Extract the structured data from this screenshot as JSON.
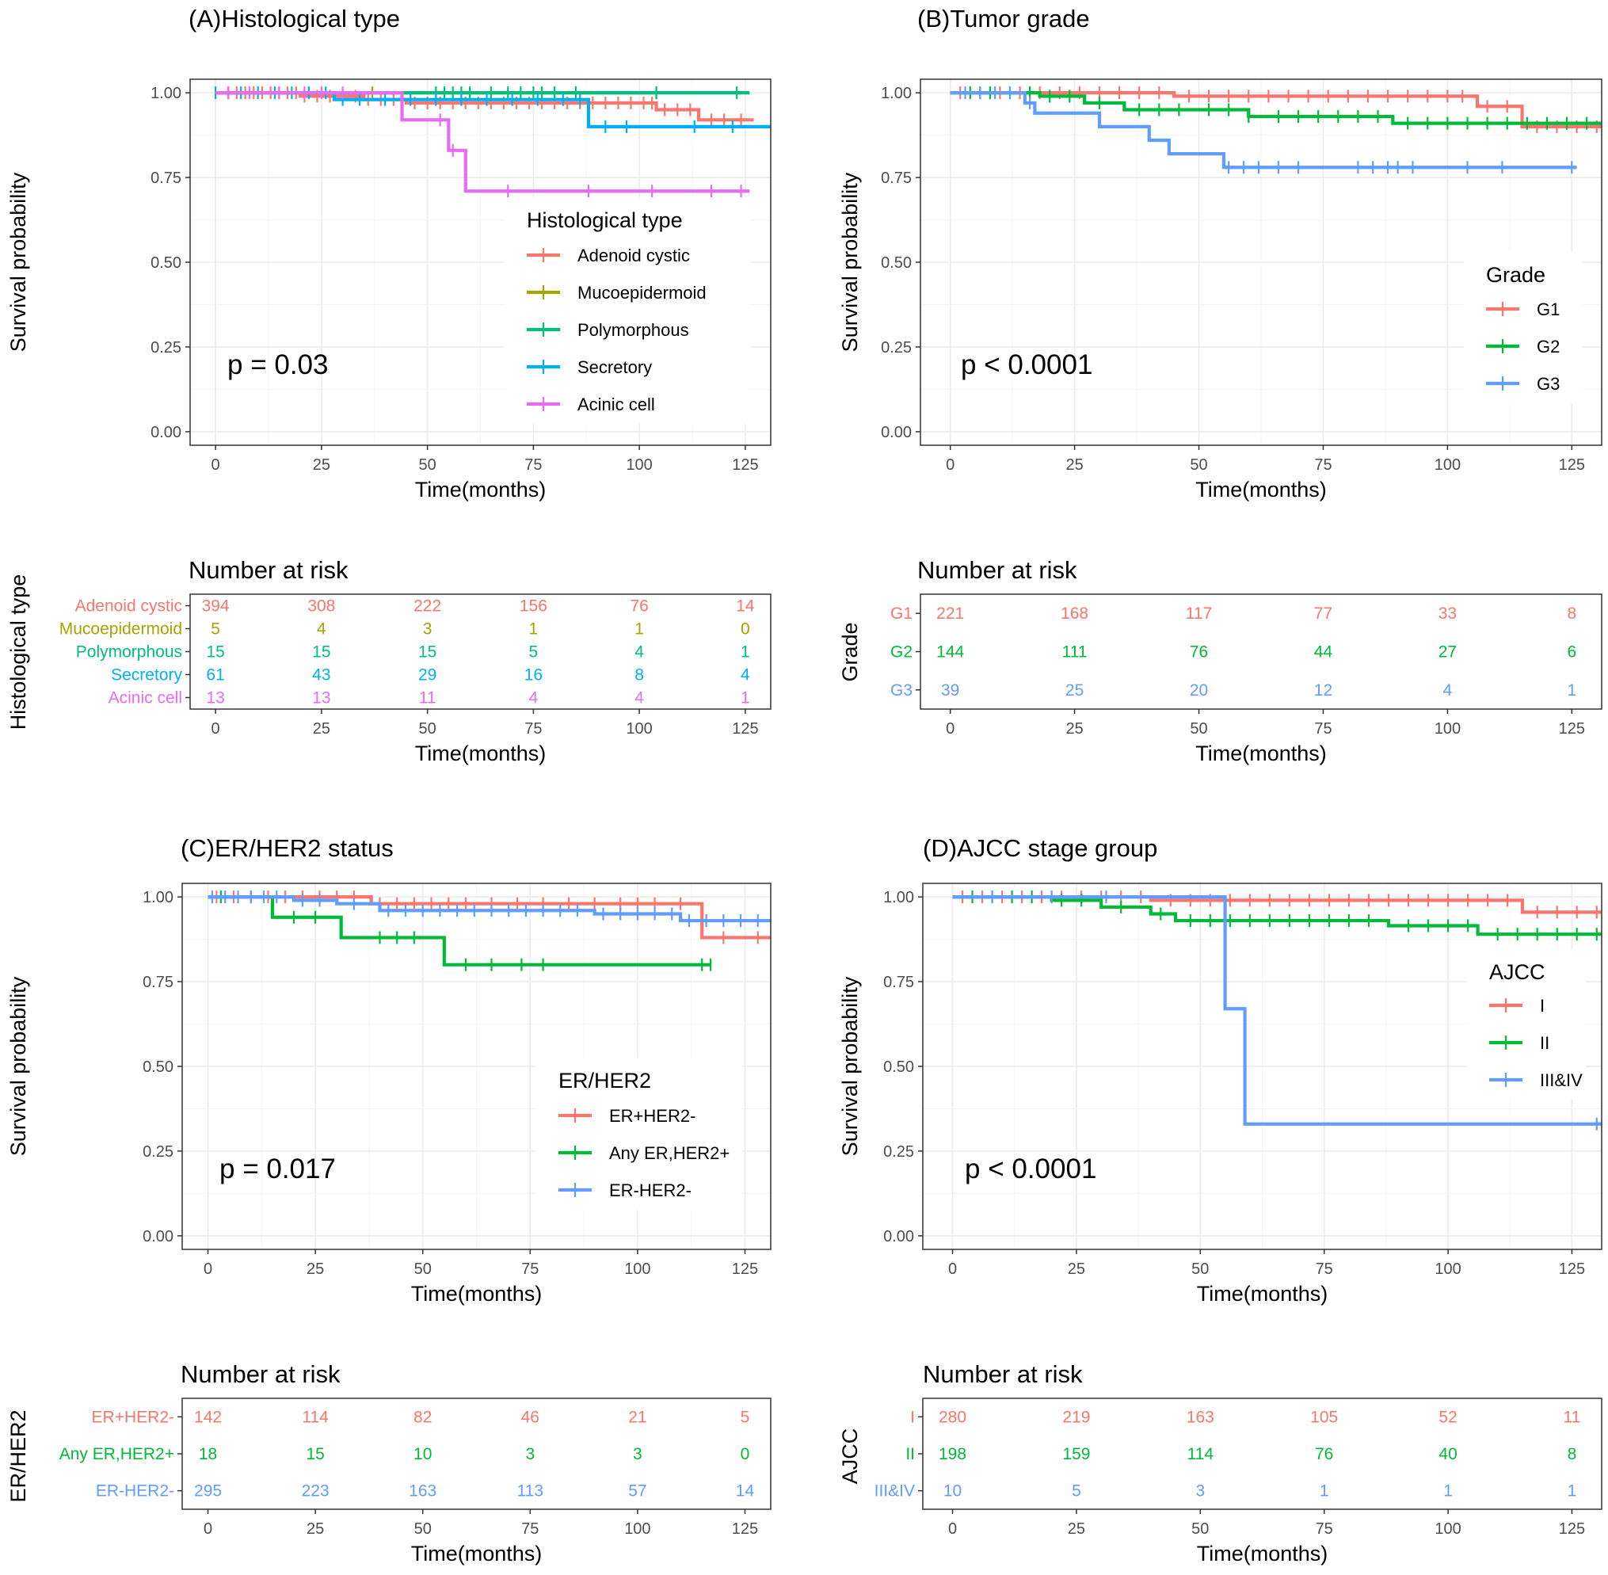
{
  "chart_data": [
    {
      "id": "A",
      "type": "line",
      "title": "(A)Histological type",
      "xlabel": "Time(months)",
      "ylabel": "Survival probability",
      "xlim": [
        -6,
        131
      ],
      "ylim": [
        -0.04,
        1.04
      ],
      "xticks": [
        "0",
        "25",
        "50",
        "75",
        "100",
        "125"
      ],
      "yticks": [
        "0.00",
        "0.25",
        "0.50",
        "0.75",
        "1.00"
      ],
      "grid": true,
      "pvalue": "p = 0.03",
      "legend": {
        "title": "Histological type",
        "position": "center-right"
      },
      "series": [
        {
          "name": "Adenoid cystic",
          "color": "#F8766D",
          "end": 127,
          "steps": [
            [
              0,
              1.0
            ],
            [
              20,
              0.99
            ],
            [
              35,
              0.98
            ],
            [
              45,
              0.97
            ],
            [
              104,
              0.95
            ],
            [
              114,
              0.92
            ]
          ],
          "censors": [
            3,
            5,
            7,
            9,
            11,
            13,
            15,
            17,
            19,
            21,
            24,
            27,
            30,
            33,
            36,
            39,
            42,
            47,
            50,
            53,
            56,
            59,
            62,
            65,
            68,
            71,
            74,
            77,
            80,
            83,
            86,
            89,
            92,
            95,
            98,
            101,
            103,
            106,
            109,
            112,
            117,
            120,
            124
          ]
        },
        {
          "name": "Mucoepidermoid",
          "color": "#A3A500",
          "end": 104,
          "steps": [
            [
              0,
              1.0
            ]
          ],
          "censors": [
            3,
            37,
            104
          ]
        },
        {
          "name": "Polymorphous",
          "color": "#00BF7D",
          "end": 126,
          "steps": [
            [
              0,
              1.0
            ]
          ],
          "censors": [
            52,
            54,
            56,
            58,
            60,
            65,
            69,
            72,
            75,
            77,
            80,
            85,
            104,
            123
          ]
        },
        {
          "name": "Secretory",
          "color": "#00B0F6",
          "end": 131,
          "steps": [
            [
              0,
              1.0
            ],
            [
              28,
              0.98
            ],
            [
              88,
              0.9
            ]
          ],
          "censors": [
            0,
            6,
            10,
            14,
            18,
            22,
            26,
            30,
            34,
            40,
            46,
            52,
            58,
            64,
            70,
            76,
            82,
            86,
            92,
            97,
            113,
            122
          ]
        },
        {
          "name": "Acinic cell",
          "color": "#E76BF3",
          "end": 126,
          "steps": [
            [
              0,
              1.0
            ],
            [
              44,
              0.92
            ],
            [
              55,
              0.83
            ],
            [
              59,
              0.71
            ]
          ],
          "censors": [
            3,
            8,
            15,
            21,
            25,
            30,
            53,
            56,
            69,
            88,
            103,
            117,
            124
          ]
        }
      ],
      "risk": {
        "title": "Number at risk",
        "ylabel": "Histological type",
        "xlabel": "Time(months)",
        "time_points": [
          0,
          25,
          50,
          75,
          100,
          125
        ],
        "rows": [
          {
            "label": "Adenoid cystic",
            "color": "#F8766D",
            "values": [
              "394",
              "308",
              "222",
              "156",
              "76",
              "14"
            ]
          },
          {
            "label": "Mucoepidermoid",
            "color": "#A3A500",
            "values": [
              "5",
              "4",
              "3",
              "1",
              "1",
              "0"
            ]
          },
          {
            "label": "Polymorphous",
            "color": "#00BF7D",
            "values": [
              "15",
              "15",
              "15",
              "5",
              "4",
              "1"
            ]
          },
          {
            "label": "Secretory",
            "color": "#00B0F6",
            "values": [
              "61",
              "43",
              "29",
              "16",
              "8",
              "4"
            ]
          },
          {
            "label": "Acinic cell",
            "color": "#E76BF3",
            "values": [
              "13",
              "13",
              "11",
              "4",
              "4",
              "1"
            ]
          }
        ]
      }
    },
    {
      "id": "B",
      "type": "line",
      "title": "(B)Tumor grade",
      "xlabel": "Time(months)",
      "ylabel": "Survival probability",
      "xlim": [
        -6,
        131
      ],
      "ylim": [
        -0.04,
        1.04
      ],
      "xticks": [
        "0",
        "25",
        "50",
        "75",
        "100",
        "125"
      ],
      "yticks": [
        "0.00",
        "0.25",
        "0.50",
        "0.75",
        "1.00"
      ],
      "grid": true,
      "pvalue": "p < 0.0001",
      "legend": {
        "title": "Grade",
        "position": "right"
      },
      "series": [
        {
          "name": "G1",
          "color": "#F8766D",
          "end": 131,
          "steps": [
            [
              0,
              1.0
            ],
            [
              45,
              0.99
            ],
            [
              106,
              0.96
            ],
            [
              115,
              0.9
            ]
          ],
          "censors": [
            2,
            6,
            10,
            14,
            18,
            22,
            26,
            30,
            34,
            38,
            42,
            48,
            52,
            56,
            60,
            64,
            68,
            72,
            76,
            80,
            84,
            88,
            92,
            96,
            100,
            103,
            108,
            112,
            118,
            122,
            126,
            130
          ]
        },
        {
          "name": "G2",
          "color": "#00BA38",
          "end": 131,
          "steps": [
            [
              0,
              1.0
            ],
            [
              18,
              0.99
            ],
            [
              27,
              0.97
            ],
            [
              35,
              0.95
            ],
            [
              60,
              0.93
            ],
            [
              89,
              0.91
            ]
          ],
          "censors": [
            4,
            8,
            12,
            16,
            20,
            24,
            30,
            38,
            42,
            46,
            52,
            56,
            60,
            66,
            70,
            74,
            78,
            82,
            86,
            92,
            96,
            100,
            104,
            108,
            112,
            116,
            120,
            124,
            128
          ]
        },
        {
          "name": "G3",
          "color": "#619CFF",
          "end": 126,
          "steps": [
            [
              0,
              1.0
            ],
            [
              15,
              0.97
            ],
            [
              17,
              0.94
            ],
            [
              30,
              0.9
            ],
            [
              40,
              0.86
            ],
            [
              44,
              0.82
            ],
            [
              55,
              0.78
            ]
          ],
          "censors": [
            3,
            6,
            9,
            12,
            16,
            56,
            59,
            62,
            66,
            70,
            82,
            85,
            88,
            90,
            93,
            104,
            111,
            125
          ]
        }
      ],
      "risk": {
        "title": "Number at risk",
        "ylabel": "Grade",
        "xlabel": "Time(months)",
        "time_points": [
          0,
          25,
          50,
          75,
          100,
          125
        ],
        "rows": [
          {
            "label": "G1",
            "color": "#F8766D",
            "values": [
              "221",
              "168",
              "117",
              "77",
              "33",
              "8"
            ]
          },
          {
            "label": "G2",
            "color": "#00BA38",
            "values": [
              "144",
              "111",
              "76",
              "44",
              "27",
              "6"
            ]
          },
          {
            "label": "G3",
            "color": "#619CFF",
            "values": [
              "39",
              "25",
              "20",
              "12",
              "4",
              "1"
            ]
          }
        ]
      }
    },
    {
      "id": "C",
      "type": "line",
      "title": "(C)ER/HER2 status",
      "xlabel": "Time(months)",
      "ylabel": "Survival probability",
      "xlim": [
        -6,
        131
      ],
      "ylim": [
        -0.04,
        1.04
      ],
      "xticks": [
        "0",
        "25",
        "50",
        "75",
        "100",
        "125"
      ],
      "yticks": [
        "0.00",
        "0.25",
        "0.50",
        "0.75",
        "1.00"
      ],
      "grid": true,
      "pvalue": "p = 0.017",
      "legend": {
        "title": "ER/HER2",
        "position": "bottom-right"
      },
      "series": [
        {
          "name": "ER+HER2-",
          "color": "#F8766D",
          "end": 131,
          "steps": [
            [
              0,
              1.0
            ],
            [
              38,
              0.98
            ],
            [
              115,
              0.88
            ]
          ],
          "censors": [
            2,
            6,
            10,
            14,
            18,
            22,
            26,
            30,
            34,
            40,
            44,
            48,
            52,
            56,
            60,
            66,
            72,
            78,
            84,
            90,
            96,
            100,
            104,
            110,
            120,
            128
          ]
        },
        {
          "name": "Any ER,HER2+",
          "color": "#00BA38",
          "end": 117,
          "steps": [
            [
              0,
              1.0
            ],
            [
              15,
              0.94
            ],
            [
              31,
              0.88
            ],
            [
              55,
              0.8
            ]
          ],
          "censors": [
            3,
            20,
            25,
            40,
            44,
            48,
            60,
            66,
            73,
            78,
            115,
            117
          ]
        },
        {
          "name": "ER-HER2-",
          "color": "#619CFF",
          "end": 131,
          "steps": [
            [
              0,
              1.0
            ],
            [
              20,
              0.99
            ],
            [
              30,
              0.98
            ],
            [
              40,
              0.96
            ],
            [
              90,
              0.95
            ],
            [
              110,
              0.93
            ]
          ],
          "censors": [
            1,
            4,
            7,
            10,
            13,
            16,
            22,
            26,
            34,
            42,
            46,
            50,
            54,
            58,
            62,
            66,
            70,
            74,
            78,
            82,
            86,
            92,
            96,
            100,
            104,
            108,
            112,
            116,
            120,
            124,
            128
          ]
        }
      ],
      "risk": {
        "title": "Number at risk",
        "ylabel": "ER/HER2",
        "xlabel": "Time(months)",
        "time_points": [
          0,
          25,
          50,
          75,
          100,
          125
        ],
        "rows": [
          {
            "label": "ER+HER2-",
            "color": "#F8766D",
            "values": [
              "142",
              "114",
              "82",
              "46",
              "21",
              "5"
            ]
          },
          {
            "label": "Any ER,HER2+",
            "color": "#00BA38",
            "values": [
              "18",
              "15",
              "10",
              "3",
              "3",
              "0"
            ]
          },
          {
            "label": "ER-HER2-",
            "color": "#619CFF",
            "values": [
              "295",
              "223",
              "163",
              "113",
              "57",
              "14"
            ]
          }
        ]
      }
    },
    {
      "id": "D",
      "type": "line",
      "title": "(D)AJCC stage group",
      "xlabel": "Time(months)",
      "ylabel": "Survival probability",
      "xlim": [
        -6,
        131
      ],
      "ylim": [
        -0.04,
        1.04
      ],
      "xticks": [
        "0",
        "25",
        "50",
        "75",
        "100",
        "125"
      ],
      "yticks": [
        "0.00",
        "0.25",
        "0.50",
        "0.75",
        "1.00"
      ],
      "grid": true,
      "pvalue": "p < 0.0001",
      "legend": {
        "title": "AJCC",
        "position": "right"
      },
      "series": [
        {
          "name": "I",
          "color": "#F8766D",
          "end": 131,
          "steps": [
            [
              0,
              1.0
            ],
            [
              40,
              0.99
            ],
            [
              115,
              0.955
            ]
          ],
          "censors": [
            2,
            6,
            10,
            14,
            18,
            22,
            26,
            30,
            34,
            38,
            44,
            48,
            52,
            56,
            60,
            64,
            68,
            72,
            76,
            80,
            84,
            88,
            92,
            96,
            100,
            104,
            108,
            112,
            118,
            122,
            126,
            130
          ]
        },
        {
          "name": "II",
          "color": "#00BA38",
          "end": 131,
          "steps": [
            [
              0,
              1.0
            ],
            [
              20,
              0.99
            ],
            [
              30,
              0.97
            ],
            [
              40,
              0.95
            ],
            [
              45,
              0.93
            ],
            [
              88,
              0.915
            ],
            [
              106,
              0.89
            ]
          ],
          "censors": [
            4,
            8,
            12,
            16,
            22,
            26,
            34,
            42,
            48,
            52,
            56,
            60,
            64,
            68,
            72,
            76,
            80,
            84,
            92,
            96,
            100,
            104,
            110,
            114,
            118,
            122,
            126,
            130
          ]
        },
        {
          "name": "III&IV",
          "color": "#619CFF",
          "end": 131,
          "steps": [
            [
              0,
              1.0
            ],
            [
              55,
              0.67
            ],
            [
              59,
              0.33
            ]
          ],
          "censors": [
            8,
            20,
            31,
            130
          ]
        }
      ],
      "risk": {
        "title": "Number at risk",
        "ylabel": "AJCC",
        "xlabel": "Time(months)",
        "time_points": [
          0,
          25,
          50,
          75,
          100,
          125
        ],
        "rows": [
          {
            "label": "I",
            "color": "#F8766D",
            "values": [
              "280",
              "219",
              "163",
              "105",
              "52",
              "11"
            ]
          },
          {
            "label": "II",
            "color": "#00BA38",
            "values": [
              "198",
              "159",
              "114",
              "76",
              "40",
              "8"
            ]
          },
          {
            "label": "III&IV",
            "color": "#619CFF",
            "values": [
              "10",
              "5",
              "3",
              "1",
              "1",
              "1"
            ]
          }
        ]
      }
    }
  ]
}
